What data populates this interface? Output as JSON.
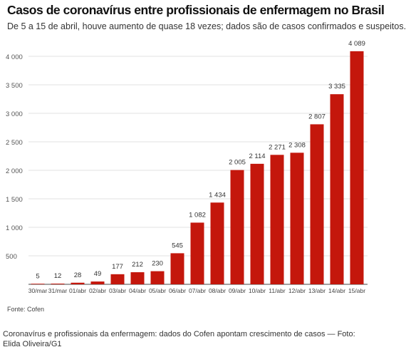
{
  "chart_data": {
    "type": "bar",
    "title": "Casos de coronavírus entre profissionais de enfermagem no Brasil",
    "subtitle": "De 5 a 15 de abril, houve aumento de quase 18 vezes; dados são de casos confirmados e suspeitos.",
    "xlabel": "",
    "ylabel": "",
    "categories": [
      "30/mar",
      "31/mar",
      "01/abr",
      "02/abr",
      "03/abr",
      "04/abr",
      "05/abr",
      "06/abr",
      "07/abr",
      "08/abr",
      "09/abr",
      "10/abr",
      "11/abr",
      "12/abr",
      "13/abr",
      "14/abr",
      "15/abr"
    ],
    "values": [
      5,
      12,
      28,
      49,
      177,
      212,
      230,
      545,
      1082,
      1434,
      2005,
      2114,
      2271,
      2308,
      2807,
      3335,
      4089
    ],
    "value_labels": [
      "5",
      "12",
      "28",
      "49",
      "177",
      "212",
      "230",
      "545",
      "1 082",
      "1 434",
      "2 005",
      "2 114",
      "2 271",
      "2 308",
      "2 807",
      "3 335",
      "4 089"
    ],
    "ylim": [
      0,
      4000
    ],
    "yticks": [
      500,
      1000,
      1500,
      2000,
      2500,
      3000,
      3500,
      4000
    ],
    "ytick_labels": [
      "500",
      "1 000",
      "1 500",
      "2 000",
      "2 500",
      "3 000",
      "3 500",
      "4 000"
    ],
    "grid": true,
    "bar_color": "#c4170c",
    "grid_color": "#e2e2e2"
  },
  "source": "Fonte: Cofen",
  "caption": "Coronavírus e profissionais da enfermagem: dados do Cofen apontam crescimento de casos — Foto: Elida Oliveira/G1"
}
